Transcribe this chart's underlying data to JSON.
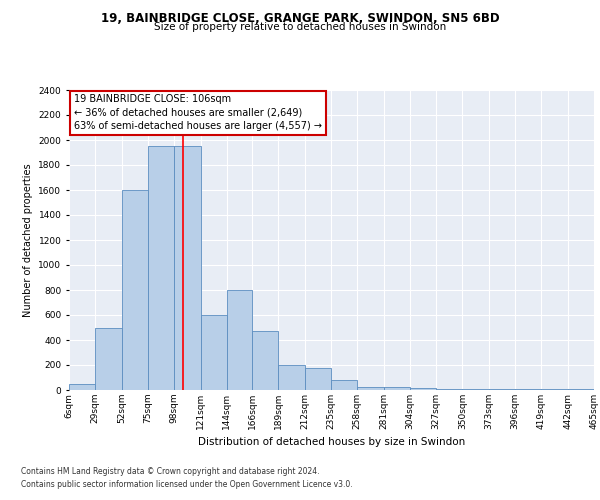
{
  "title1": "19, BAINBRIDGE CLOSE, GRANGE PARK, SWINDON, SN5 6BD",
  "title2": "Size of property relative to detached houses in Swindon",
  "xlabel": "Distribution of detached houses by size in Swindon",
  "ylabel": "Number of detached properties",
  "footnote1": "Contains HM Land Registry data © Crown copyright and database right 2024.",
  "footnote2": "Contains public sector information licensed under the Open Government Licence v3.0.",
  "annotation_line1": "19 BAINBRIDGE CLOSE: 106sqm",
  "annotation_line2": "← 36% of detached houses are smaller (2,649)",
  "annotation_line3": "63% of semi-detached houses are larger (4,557) →",
  "bar_color": "#b8cfe8",
  "bar_edge_color": "#5b8dc0",
  "red_line_x": 106,
  "bin_edges": [
    6,
    29,
    52,
    75,
    98,
    121,
    144,
    166,
    189,
    212,
    235,
    258,
    281,
    304,
    327,
    350,
    373,
    396,
    419,
    442,
    465
  ],
  "bin_labels": [
    "6sqm",
    "29sqm",
    "52sqm",
    "75sqm",
    "98sqm",
    "121sqm",
    "144sqm",
    "166sqm",
    "189sqm",
    "212sqm",
    "235sqm",
    "258sqm",
    "281sqm",
    "304sqm",
    "327sqm",
    "350sqm",
    "373sqm",
    "396sqm",
    "419sqm",
    "442sqm",
    "465sqm"
  ],
  "bar_heights": [
    50,
    500,
    1600,
    1950,
    1950,
    600,
    800,
    475,
    200,
    175,
    80,
    25,
    25,
    15,
    10,
    10,
    5,
    5,
    5,
    5
  ],
  "ylim": [
    0,
    2400
  ],
  "yticks": [
    0,
    200,
    400,
    600,
    800,
    1000,
    1200,
    1400,
    1600,
    1800,
    2000,
    2200,
    2400
  ],
  "bg_color": "#e8edf5",
  "grid_color": "#ffffff",
  "annotation_box_color": "#ffffff",
  "annotation_box_edge": "#cc0000",
  "title1_fontsize": 8.5,
  "title2_fontsize": 7.5,
  "xlabel_fontsize": 7.5,
  "ylabel_fontsize": 7.0,
  "tick_fontsize": 6.5,
  "footnote_fontsize": 5.5,
  "annotation_fontsize": 7.0
}
